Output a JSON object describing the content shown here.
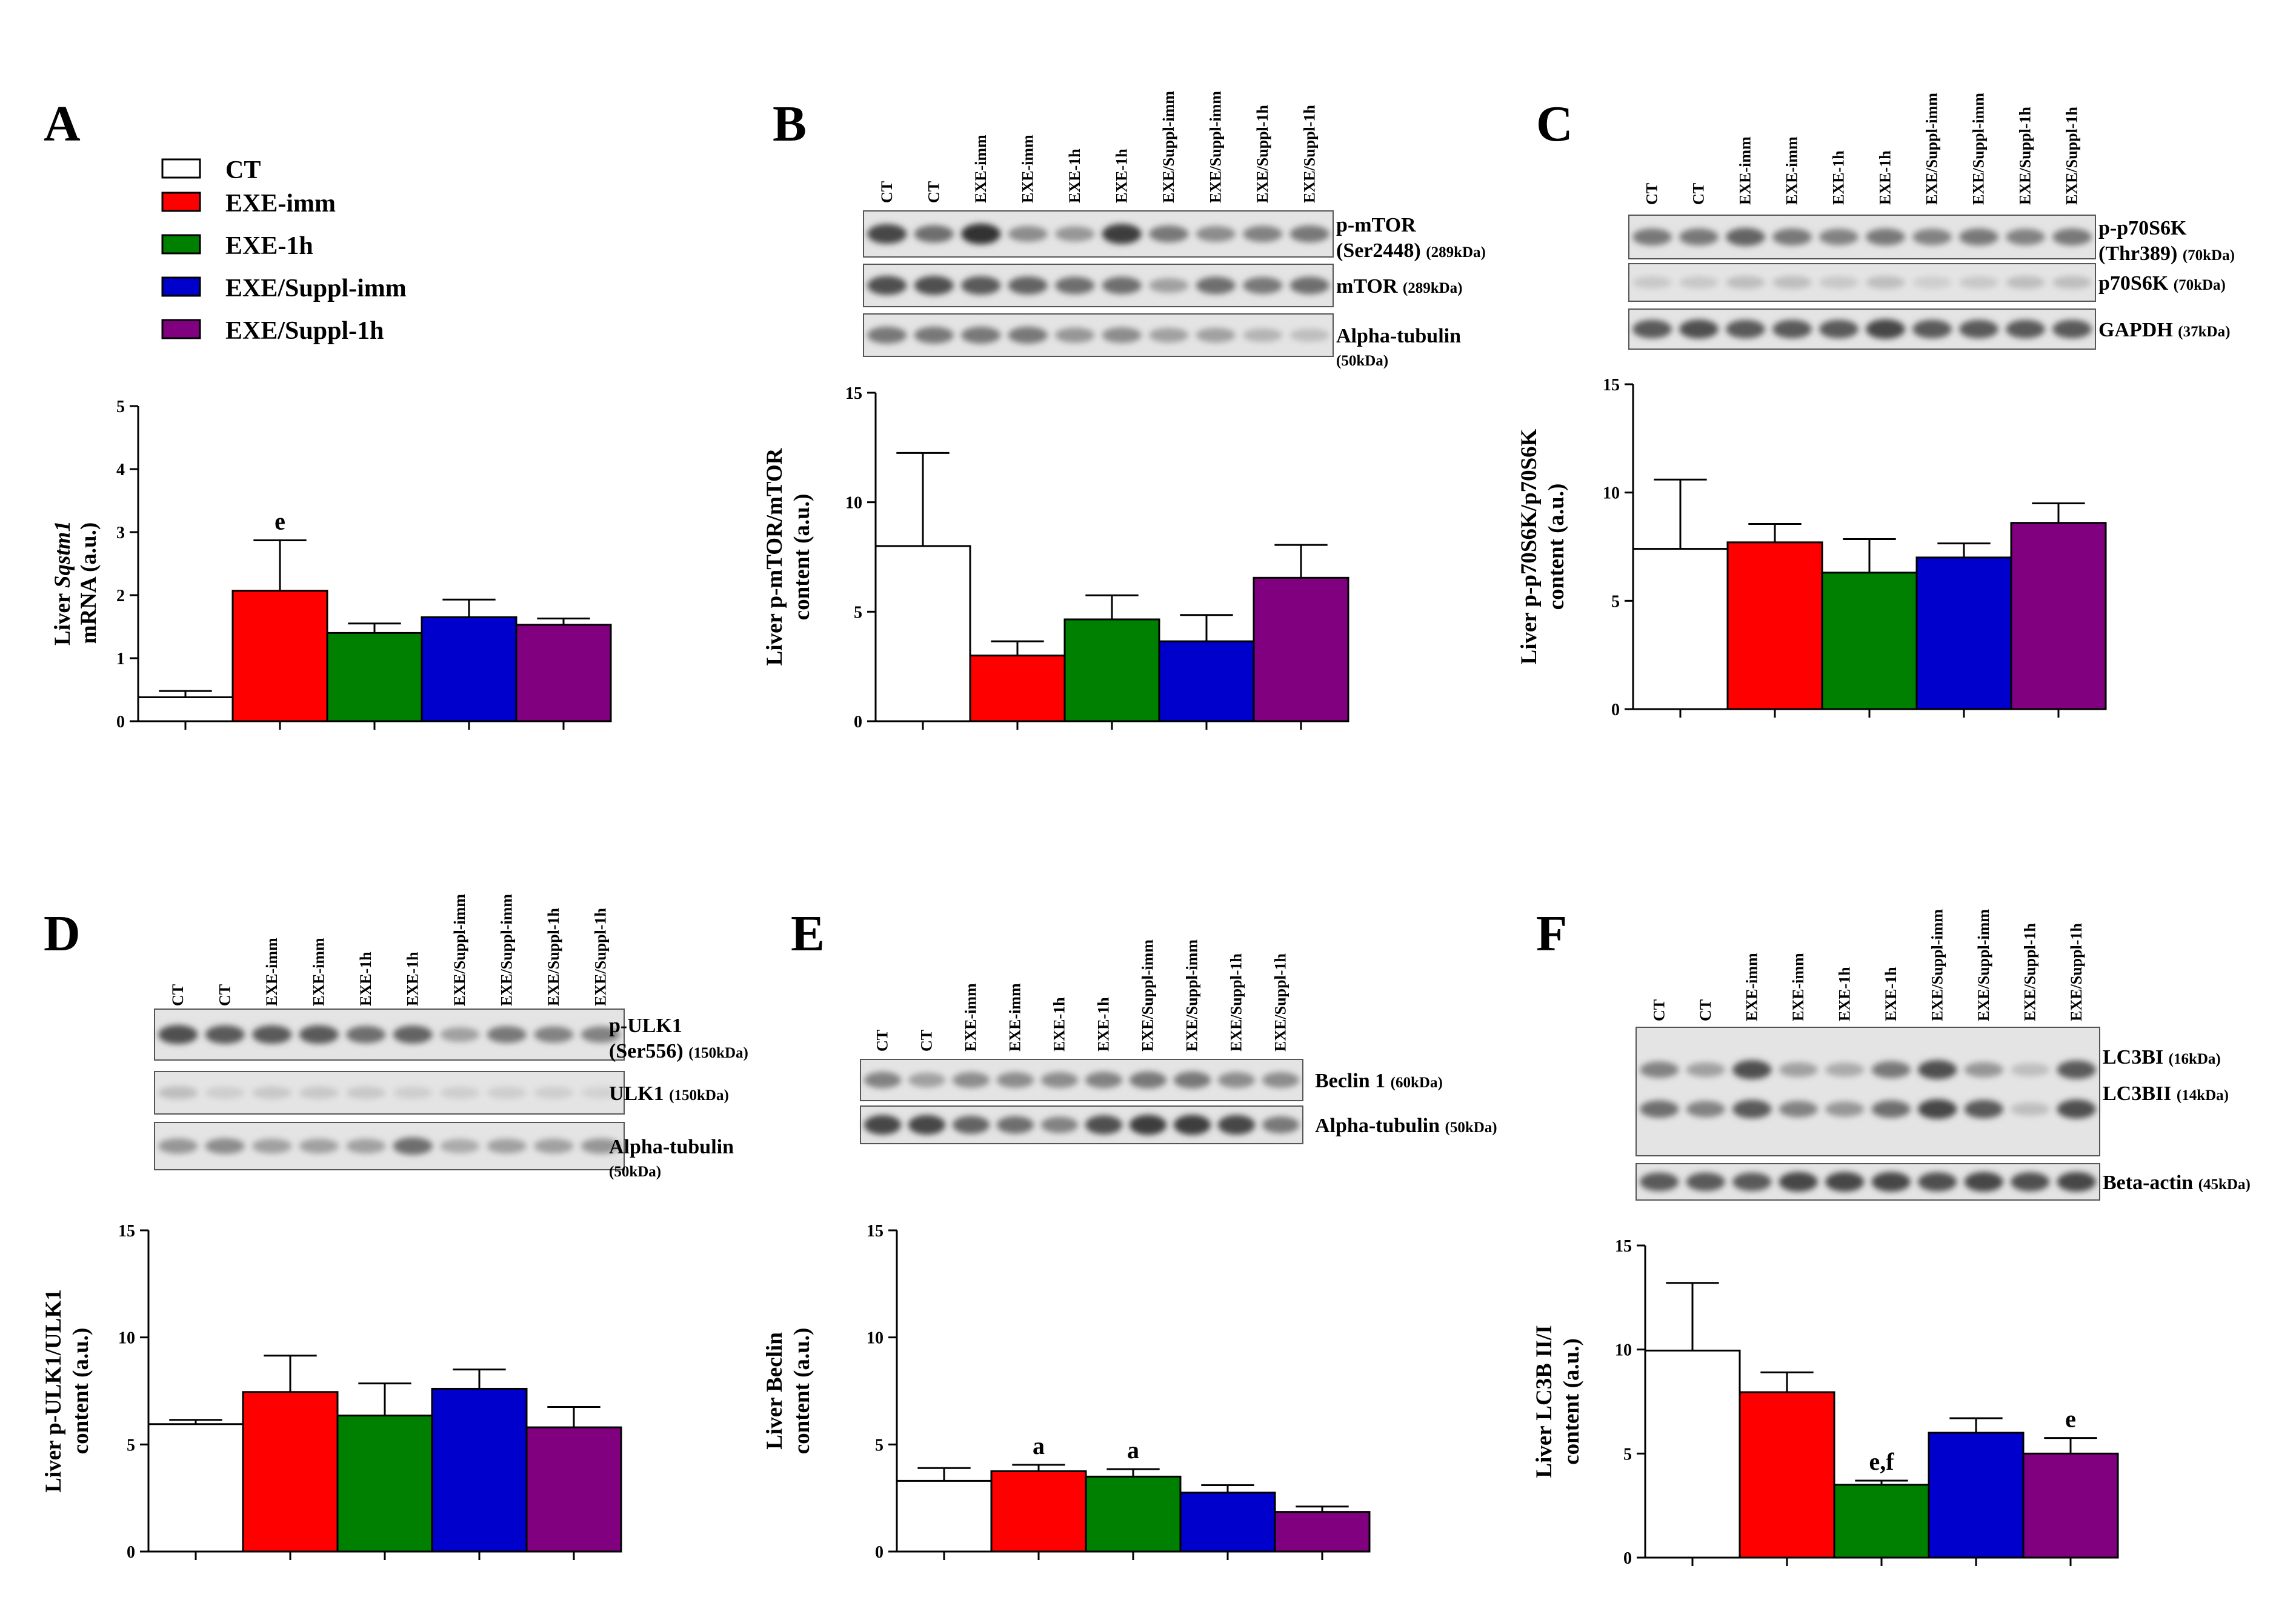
{
  "legend": [
    {
      "label": "CT",
      "color": "#ffffff"
    },
    {
      "label": "EXE-imm",
      "color": "#ff0000"
    },
    {
      "label": "EXE-1h",
      "color": "#008000"
    },
    {
      "label": "EXE/Suppl-imm",
      "color": "#0000cc"
    },
    {
      "label": "EXE/Suppl-1h",
      "color": "#800080"
    }
  ],
  "chart_data": [
    {
      "panel": "A",
      "type": "bar",
      "title": "",
      "xlabel": "",
      "ylabel_parts": [
        "Liver ",
        "Sqstm1",
        "mRNA (a.u.)"
      ],
      "categories": [
        "CT",
        "EXE-imm",
        "EXE-1h",
        "EXE/Suppl-imm",
        "EXE/Suppl-1h"
      ],
      "values": [
        0.38,
        2.07,
        1.4,
        1.65,
        1.53
      ],
      "errors": [
        0.1,
        0.8,
        0.15,
        0.28,
        0.1
      ],
      "annotations": [
        "",
        "e",
        "",
        "",
        ""
      ],
      "ylim": [
        0,
        5
      ],
      "yticks": [
        "0",
        "1",
        "2",
        "3",
        "4",
        "5"
      ]
    },
    {
      "panel": "B",
      "type": "bar",
      "ylabel_lines": [
        "Liver p-mTOR/mTOR",
        "content (a.u.)"
      ],
      "categories": [
        "CT",
        "EXE-imm",
        "EXE-1h",
        "EXE/Suppl-imm",
        "EXE/Suppl-1h"
      ],
      "values": [
        8.0,
        3.0,
        4.65,
        3.65,
        6.55
      ],
      "errors": [
        4.25,
        0.65,
        1.1,
        1.2,
        1.5
      ],
      "annotations": [
        "",
        "",
        "",
        "",
        ""
      ],
      "ylim": [
        0,
        15
      ],
      "yticks": [
        "0",
        "5",
        "10",
        "15"
      ]
    },
    {
      "panel": "C",
      "type": "bar",
      "ylabel_lines": [
        "Liver p-p70S6K/p70S6K",
        "content (a.u.)"
      ],
      "categories": [
        "CT",
        "EXE-imm",
        "EXE-1h",
        "EXE/Suppl-imm",
        "EXE/Suppl-1h"
      ],
      "values": [
        7.4,
        7.7,
        6.3,
        7.0,
        8.6
      ],
      "errors": [
        3.2,
        0.85,
        1.55,
        0.65,
        0.9
      ],
      "annotations": [
        "",
        "",
        "",
        "",
        ""
      ],
      "ylim": [
        0,
        15
      ],
      "yticks": [
        "0",
        "5",
        "10",
        "15"
      ]
    },
    {
      "panel": "D",
      "type": "bar",
      "ylabel_lines": [
        "Liver p-ULK1/ULK1",
        "content (a.u.)"
      ],
      "categories": [
        "CT",
        "EXE-imm",
        "EXE-1h",
        "EXE/Suppl-imm",
        "EXE/Suppl-1h"
      ],
      "values": [
        5.95,
        7.45,
        6.35,
        7.6,
        5.8
      ],
      "errors": [
        0.2,
        1.7,
        1.5,
        0.9,
        0.95
      ],
      "annotations": [
        "",
        "",
        "",
        "",
        ""
      ],
      "ylim": [
        0,
        15
      ],
      "yticks": [
        "0",
        "5",
        "10",
        "15"
      ]
    },
    {
      "panel": "E",
      "type": "bar",
      "ylabel_lines": [
        "Liver Beclin",
        "content (a.u.)"
      ],
      "categories": [
        "CT",
        "EXE-imm",
        "EXE-1h",
        "EXE/Suppl-imm",
        "EXE/Suppl-1h"
      ],
      "values": [
        3.3,
        3.75,
        3.5,
        2.75,
        1.85
      ],
      "errors": [
        0.6,
        0.3,
        0.35,
        0.35,
        0.25
      ],
      "annotations": [
        "",
        "a",
        "a",
        "",
        ""
      ],
      "ylim": [
        0,
        15
      ],
      "yticks": [
        "0",
        "5",
        "10",
        "15"
      ]
    },
    {
      "panel": "F",
      "type": "bar",
      "ylabel_lines": [
        "Liver LC3B II/I",
        "content (a.u.)"
      ],
      "categories": [
        "CT",
        "EXE-imm",
        "EXE-1h",
        "EXE/Suppl-imm",
        "EXE/Suppl-1h"
      ],
      "values": [
        9.95,
        7.95,
        3.5,
        6.0,
        5.0
      ],
      "errors": [
        3.25,
        0.95,
        0.2,
        0.7,
        0.75
      ],
      "annotations": [
        "",
        "",
        "e,f",
        "",
        "e"
      ],
      "ylim": [
        0,
        15
      ],
      "yticks": [
        "0",
        "5",
        "10",
        "15"
      ]
    }
  ],
  "blots": {
    "B": {
      "lanes": [
        "CT",
        "CT",
        "EXE-imm",
        "EXE-imm",
        "EXE-1h",
        "EXE-1h",
        "EXE/Suppl-imm",
        "EXE/Suppl-imm",
        "EXE/Suppl-1h",
        "EXE/Suppl-1h"
      ],
      "bands": [
        {
          "name": "p-mTOR",
          "name2": "(Ser2448)",
          "kda": "(289kDa)",
          "intensity": [
            0.8,
            0.6,
            0.9,
            0.45,
            0.4,
            0.85,
            0.55,
            0.45,
            0.5,
            0.55
          ]
        },
        {
          "name": "mTOR",
          "name2": "",
          "kda": "(289kDa)",
          "intensity": [
            0.75,
            0.75,
            0.7,
            0.65,
            0.6,
            0.6,
            0.35,
            0.6,
            0.55,
            0.6
          ]
        },
        {
          "name": "Alpha-tubulin",
          "name2": "",
          "kda": "(50kDa)",
          "intensity": [
            0.55,
            0.55,
            0.55,
            0.55,
            0.4,
            0.45,
            0.35,
            0.35,
            0.25,
            0.2
          ]
        }
      ]
    },
    "C": {
      "lanes": [
        "CT",
        "CT",
        "EXE-imm",
        "EXE-imm",
        "EXE-1h",
        "EXE-1h",
        "EXE/Suppl-imm",
        "EXE/Suppl-imm",
        "EXE/Suppl-1h",
        "EXE/Suppl-1h"
      ],
      "bands": [
        {
          "name": "p-p70S6K",
          "name2": "(Thr389)",
          "kda": "(70kDa)",
          "intensity": [
            0.55,
            0.55,
            0.65,
            0.55,
            0.5,
            0.55,
            0.5,
            0.55,
            0.5,
            0.55
          ]
        },
        {
          "name": "p70S6K",
          "name2": "",
          "kda": "(70kDa)",
          "intensity": [
            0.15,
            0.15,
            0.2,
            0.2,
            0.15,
            0.2,
            0.12,
            0.15,
            0.2,
            0.2
          ]
        },
        {
          "name": "GAPDH",
          "name2": "",
          "kda": "(37kDa)",
          "intensity": [
            0.7,
            0.75,
            0.7,
            0.7,
            0.7,
            0.8,
            0.7,
            0.7,
            0.7,
            0.7
          ]
        }
      ]
    },
    "D": {
      "lanes": [
        "CT",
        "CT",
        "EXE-imm",
        "EXE-imm",
        "EXE-1h",
        "EXE-1h",
        "EXE/Suppl-imm",
        "EXE/Suppl-imm",
        "EXE/Suppl-1h",
        "EXE/Suppl-1h"
      ],
      "bands": [
        {
          "name": "p-ULK1",
          "name2": "(Ser556)",
          "kda": "(150kDa)",
          "intensity": [
            0.75,
            0.7,
            0.7,
            0.7,
            0.6,
            0.65,
            0.35,
            0.55,
            0.5,
            0.5
          ]
        },
        {
          "name": "ULK1",
          "name2": "",
          "kda": "(150kDa)",
          "intensity": [
            0.2,
            0.12,
            0.15,
            0.15,
            0.15,
            0.12,
            0.12,
            0.12,
            0.12,
            0.1
          ]
        },
        {
          "name": "Alpha-tubulin",
          "name2": "",
          "kda": "(50kDa)",
          "intensity": [
            0.4,
            0.45,
            0.35,
            0.35,
            0.35,
            0.6,
            0.3,
            0.35,
            0.35,
            0.4
          ]
        }
      ]
    },
    "E": {
      "lanes": [
        "CT",
        "CT",
        "EXE-imm",
        "EXE-imm",
        "EXE-1h",
        "EXE-1h",
        "EXE/Suppl-imm",
        "EXE/Suppl-imm",
        "EXE/Suppl-1h",
        "EXE/Suppl-1h"
      ],
      "bands": [
        {
          "name": "Beclin 1",
          "name2": "",
          "kda": "(60kDa)",
          "intensity": [
            0.5,
            0.35,
            0.45,
            0.45,
            0.45,
            0.5,
            0.55,
            0.55,
            0.45,
            0.45
          ]
        },
        {
          "name": "Alpha-tubulin",
          "name2": "",
          "kda": "(50kDa)",
          "intensity": [
            0.8,
            0.8,
            0.65,
            0.6,
            0.5,
            0.75,
            0.85,
            0.85,
            0.8,
            0.55
          ]
        }
      ]
    },
    "F": {
      "lanes": [
        "CT",
        "CT",
        "EXE-imm",
        "EXE-imm",
        "EXE-1h",
        "EXE-1h",
        "EXE/Suppl-imm",
        "EXE/Suppl-imm",
        "EXE/Suppl-1h",
        "EXE/Suppl-1h"
      ],
      "bands": [
        {
          "name": "LC3BI",
          "name2": "",
          "kda": "(16kDa)",
          "intensity": [
            0.5,
            0.35,
            0.75,
            0.35,
            0.3,
            0.55,
            0.75,
            0.4,
            0.2,
            0.7
          ]
        },
        {
          "name": "LC3BII",
          "name2": "",
          "kda": "(14kDa)",
          "intensity": [
            0.6,
            0.5,
            0.7,
            0.5,
            0.4,
            0.6,
            0.8,
            0.7,
            0.2,
            0.75
          ]
        },
        {
          "name": "Beta-actin",
          "name2": "",
          "kda": "(45kDa)",
          "intensity": [
            0.7,
            0.7,
            0.7,
            0.8,
            0.8,
            0.8,
            0.75,
            0.8,
            0.75,
            0.8
          ]
        }
      ]
    }
  }
}
